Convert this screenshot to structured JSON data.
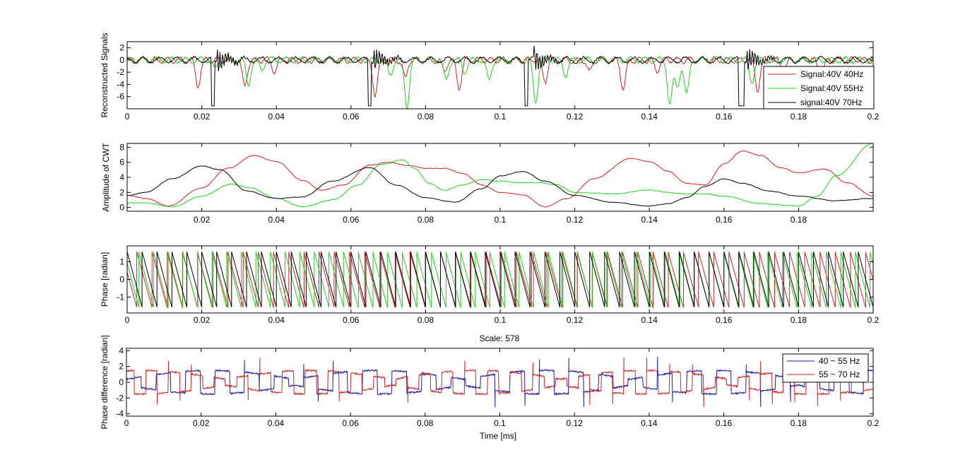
{
  "colors": {
    "red": "#d42020",
    "green": "#1ed21e",
    "black": "#000000",
    "blue": "#1a1aa8",
    "red2": "#d42020"
  },
  "chart_data": [
    {
      "type": "line",
      "ylabel": "Reconstructed Signals",
      "xlabel": "",
      "xlim": [
        0,
        0.2
      ],
      "ylim": [
        -8,
        3
      ],
      "xticks": [
        0,
        0.02,
        0.04,
        0.06,
        0.08,
        0.1,
        0.12,
        0.14,
        0.16,
        0.18,
        0.2
      ],
      "yticks": [
        -6,
        -4,
        -2,
        0,
        2
      ],
      "legend_position": "lower-right",
      "series": [
        {
          "name": "Signal:40V 40Hz",
          "color_key": "red",
          "kind": "spiky",
          "dips": [
            [
              0.019,
              -4.2
            ],
            [
              0.0315,
              -4.3
            ],
            [
              0.0395,
              -2.0
            ],
            [
              0.0665,
              -5.8
            ],
            [
              0.0745,
              -3.0
            ],
            [
              0.085,
              -1.8
            ],
            [
              0.089,
              -4.5
            ],
            [
              0.112,
              -3.5
            ],
            [
              0.124,
              -2.0
            ],
            [
              0.133,
              -4.8
            ],
            [
              0.142,
              -1.8
            ],
            [
              0.169,
              -4.8
            ],
            [
              0.176,
              -2.0
            ],
            [
              0.186,
              -3.0
            ]
          ]
        },
        {
          "name": "Signal:40V 55Hz",
          "color_key": "green",
          "kind": "spiky",
          "dips": [
            [
              0.0235,
              -1.5
            ],
            [
              0.0325,
              -4.0
            ],
            [
              0.036,
              -1.5
            ],
            [
              0.0705,
              -2.5
            ],
            [
              0.075,
              -7.6
            ],
            [
              0.0855,
              -3.5
            ],
            [
              0.0905,
              -2.0
            ],
            [
              0.097,
              -3.4
            ],
            [
              0.1095,
              -6.9
            ],
            [
              0.1175,
              -2.5
            ],
            [
              0.1455,
              -7.2
            ],
            [
              0.1475,
              -4.5
            ],
            [
              0.15,
              -5.7
            ],
            [
              0.1675,
              -3.5
            ]
          ]
        },
        {
          "name": "signal:40V 70Hz",
          "color_key": "black",
          "kind": "spiky",
          "rects": [
            [
              0.0225,
              0.0235,
              -7.5
            ],
            [
              0.0645,
              0.0655,
              -7.5
            ],
            [
              0.1065,
              0.1075,
              -7.5
            ],
            [
              0.164,
              0.1655,
              -7.5
            ]
          ],
          "bursts": [
            0.024,
            0.066,
            0.109,
            0.166
          ]
        }
      ]
    },
    {
      "type": "line",
      "ylabel": "Amplitude of CWT",
      "xlabel": "",
      "xlim": [
        0,
        0.2
      ],
      "ylim": [
        -0.5,
        8.5
      ],
      "xticks": [
        0.02,
        0.04,
        0.06,
        0.08,
        0.1,
        0.12,
        0.14,
        0.16,
        0.18
      ],
      "yticks": [
        0,
        2,
        4,
        6,
        8
      ],
      "series": [
        {
          "name": "40V 40Hz",
          "color_key": "red",
          "x": [
            0,
            0.005,
            0.011,
            0.02,
            0.027,
            0.034,
            0.04,
            0.047,
            0.052,
            0.058,
            0.065,
            0.07,
            0.075,
            0.08,
            0.085,
            0.09,
            0.095,
            0.1,
            0.106,
            0.112,
            0.118,
            0.125,
            0.135,
            0.14,
            0.145,
            0.15,
            0.155,
            0.16,
            0.165,
            0.17,
            0.175,
            0.18,
            0.187,
            0.193,
            0.2
          ],
          "y": [
            1.6,
            1.2,
            0.2,
            2.6,
            5.2,
            6.9,
            6.1,
            3.6,
            2.3,
            3.0,
            5.6,
            6.0,
            5.6,
            5.2,
            5.2,
            4.5,
            3.0,
            2.0,
            1.7,
            0.1,
            1.2,
            3.8,
            6.5,
            6.1,
            4.8,
            3.2,
            3.0,
            5.8,
            7.5,
            6.9,
            5.3,
            4.6,
            5.1,
            3.3,
            1.5
          ]
        },
        {
          "name": "40V 55Hz",
          "color_key": "green",
          "x": [
            0,
            0.005,
            0.012,
            0.02,
            0.028,
            0.033,
            0.04,
            0.047,
            0.055,
            0.062,
            0.068,
            0.074,
            0.077,
            0.081,
            0.085,
            0.09,
            0.095,
            0.1,
            0.105,
            0.11,
            0.115,
            0.12,
            0.13,
            0.14,
            0.145,
            0.15,
            0.155,
            0.16,
            0.17,
            0.18,
            0.185,
            0.19,
            0.2
          ],
          "y": [
            0.6,
            0.6,
            0.1,
            1.5,
            3.1,
            2.6,
            1.2,
            0.1,
            1.0,
            3.0,
            5.7,
            6.3,
            5.2,
            3.2,
            2.3,
            3.0,
            3.7,
            3.5,
            3.3,
            3.3,
            3.0,
            2.0,
            1.8,
            2.3,
            2.0,
            1.8,
            1.8,
            1.5,
            0.5,
            0.2,
            1.5,
            4.2,
            8.5
          ]
        },
        {
          "name": "40V 70Hz",
          "color_key": "black",
          "x": [
            0,
            0.005,
            0.012,
            0.02,
            0.025,
            0.032,
            0.04,
            0.047,
            0.055,
            0.065,
            0.072,
            0.08,
            0.088,
            0.095,
            0.1,
            0.106,
            0.112,
            0.12,
            0.13,
            0.14,
            0.145,
            0.15,
            0.155,
            0.16,
            0.165,
            0.172,
            0.18,
            0.19,
            0.2
          ],
          "y": [
            1.6,
            2.0,
            3.8,
            5.5,
            5.0,
            2.2,
            1.2,
            1.4,
            3.5,
            5.3,
            3.0,
            1.3,
            0.7,
            2.5,
            4.2,
            4.8,
            3.5,
            1.6,
            0.7,
            0.2,
            0.5,
            1.3,
            2.8,
            3.8,
            3.2,
            2.2,
            1.5,
            0.9,
            1.2
          ]
        }
      ]
    },
    {
      "type": "line",
      "ylabel": "Phase [radian]",
      "xlabel": "",
      "title": "Scale: 578",
      "xlim": [
        0,
        0.2
      ],
      "ylim": [
        -1.9,
        1.9
      ],
      "xticks": [
        0,
        0.02,
        0.04,
        0.06,
        0.08,
        0.1,
        0.12,
        0.14,
        0.16,
        0.18,
        0.2
      ],
      "yticks": [
        -1,
        0,
        1
      ],
      "series": [
        {
          "name": "40V 40Hz",
          "color_key": "red",
          "kind": "sawtooth",
          "period": 0.00407,
          "offset": 0.0015
        },
        {
          "name": "40V 55Hz",
          "color_key": "green",
          "kind": "sawtooth",
          "period": 0.00392,
          "offset": 0.0008
        },
        {
          "name": "40V 70Hz",
          "color_key": "black",
          "kind": "sawtooth",
          "period": 0.004,
          "offset": 0.0
        }
      ]
    },
    {
      "type": "line",
      "ylabel": "Phase difference [radian]",
      "xlabel": "Time [ms]",
      "xlim": [
        0,
        0.2
      ],
      "ylim": [
        -4.3,
        4.3
      ],
      "xticks": [
        0,
        0.02,
        0.04,
        0.06,
        0.08,
        0.1,
        0.12,
        0.14,
        0.16,
        0.18,
        0.2
      ],
      "yticks": [
        -4,
        -2,
        0,
        2,
        4
      ],
      "legend_position": "top-right",
      "series": [
        {
          "name": "40 ~ 55 Hz",
          "color_key": "blue",
          "kind": "square",
          "period": 0.0079,
          "amp": 1.5
        },
        {
          "name": "55 ~ 70 Hz",
          "color_key": "red2",
          "kind": "square",
          "period": 0.0061,
          "amp": 1.5
        }
      ]
    }
  ],
  "legend1": [
    "Signal:40V 40Hz",
    "Signal:40V 55Hz",
    "signal:40V 70Hz"
  ],
  "legend4": [
    "40 ~ 55 Hz",
    "55 ~ 70 Hz"
  ],
  "scale_title": "Scale: 578",
  "xlabel_bottom": "Time [ms]"
}
